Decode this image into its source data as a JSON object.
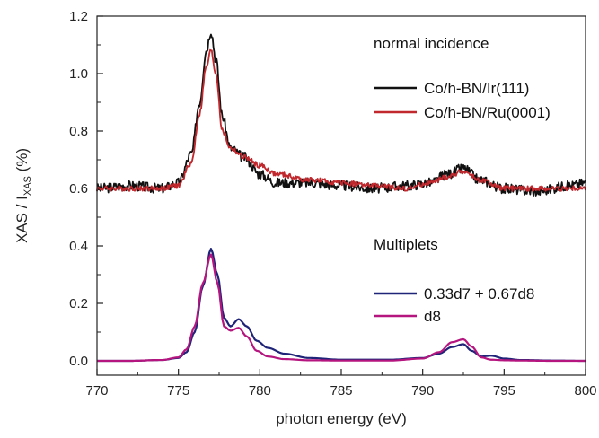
{
  "chart_data": {
    "type": "line",
    "xlabel": "photon energy (eV)",
    "ylabel": {
      "main": "XAS / I",
      "sub": "XAS",
      "suffix": " (%)"
    },
    "xlim": [
      770,
      800
    ],
    "ylim": [
      -0.05,
      1.2
    ],
    "xticks": [
      770,
      775,
      780,
      785,
      790,
      795,
      800
    ],
    "yticks": [
      0.0,
      0.2,
      0.4,
      0.6,
      0.8,
      1.0,
      1.2
    ],
    "xtick_labels": [
      "770",
      "775",
      "780",
      "785",
      "790",
      "795",
      "800"
    ],
    "ytick_labels": [
      "0.0",
      "0.2",
      "0.4",
      "0.6",
      "0.8",
      "1.0",
      "1.2"
    ],
    "annotations": [
      {
        "key": "normal",
        "text": "normal incidence"
      },
      {
        "key": "multiplets",
        "text": "Multiplets"
      }
    ],
    "series": [
      {
        "name": "Co/h-BN/Ir(111)",
        "color": "#111111",
        "group": "normal",
        "x": [
          770,
          772,
          774,
          775,
          775.8,
          776.3,
          776.7,
          777.0,
          777.3,
          777.7,
          778.2,
          779.0,
          780,
          781,
          783,
          785,
          787,
          789,
          790.5,
          791.5,
          792.5,
          793.5,
          795,
          797,
          799,
          800
        ],
        "y": [
          0.6,
          0.61,
          0.6,
          0.62,
          0.72,
          0.9,
          1.08,
          1.15,
          1.05,
          0.85,
          0.74,
          0.71,
          0.65,
          0.62,
          0.62,
          0.61,
          0.6,
          0.61,
          0.62,
          0.65,
          0.67,
          0.63,
          0.6,
          0.59,
          0.61,
          0.62
        ]
      },
      {
        "name": "Co/h-BN/Ru(0001)",
        "color": "#c0282d",
        "group": "normal",
        "x": [
          770,
          772,
          774,
          775,
          775.8,
          776.3,
          776.7,
          777.0,
          777.3,
          777.7,
          778.2,
          779.0,
          780,
          781,
          783,
          785,
          787,
          789,
          790.5,
          791.5,
          792.5,
          793.5,
          795,
          797,
          799,
          800
        ],
        "y": [
          0.6,
          0.6,
          0.6,
          0.61,
          0.69,
          0.86,
          1.02,
          1.08,
          1.0,
          0.8,
          0.74,
          0.71,
          0.68,
          0.65,
          0.63,
          0.62,
          0.61,
          0.6,
          0.62,
          0.64,
          0.66,
          0.63,
          0.6,
          0.6,
          0.6,
          0.6
        ]
      },
      {
        "name": "0.33d7 + 0.67d8",
        "color": "#1f2478",
        "group": "multiplets",
        "x": [
          770,
          772,
          774,
          775,
          775.5,
          776,
          776.5,
          777.0,
          777.4,
          777.8,
          778.2,
          778.7,
          779.2,
          779.8,
          780.5,
          781.5,
          783,
          785,
          788,
          790,
          791,
          791.8,
          792.5,
          793,
          793.6,
          794.2,
          795,
          796,
          798,
          800
        ],
        "y": [
          0.0,
          0.0,
          0.003,
          0.01,
          0.03,
          0.1,
          0.26,
          0.39,
          0.3,
          0.15,
          0.12,
          0.145,
          0.12,
          0.07,
          0.045,
          0.025,
          0.01,
          0.004,
          0.004,
          0.01,
          0.025,
          0.048,
          0.058,
          0.035,
          0.015,
          0.018,
          0.008,
          0.003,
          0.001,
          0.0
        ]
      },
      {
        "name": "d8",
        "color": "#b5157e",
        "group": "multiplets",
        "x": [
          770,
          772,
          774,
          775,
          775.5,
          776,
          776.5,
          777.0,
          777.4,
          777.8,
          778.2,
          778.7,
          779.2,
          779.8,
          780.5,
          781.5,
          783,
          785,
          788,
          790,
          791,
          791.8,
          792.5,
          793,
          793.6,
          794.2,
          795,
          796,
          798,
          800
        ],
        "y": [
          0.0,
          0.0,
          0.003,
          0.012,
          0.04,
          0.12,
          0.27,
          0.37,
          0.27,
          0.12,
          0.105,
          0.115,
          0.085,
          0.035,
          0.015,
          0.006,
          0.002,
          0.001,
          0.001,
          0.008,
          0.03,
          0.065,
          0.075,
          0.05,
          0.012,
          0.004,
          0.002,
          0.001,
          0.0,
          0.0
        ]
      }
    ]
  }
}
